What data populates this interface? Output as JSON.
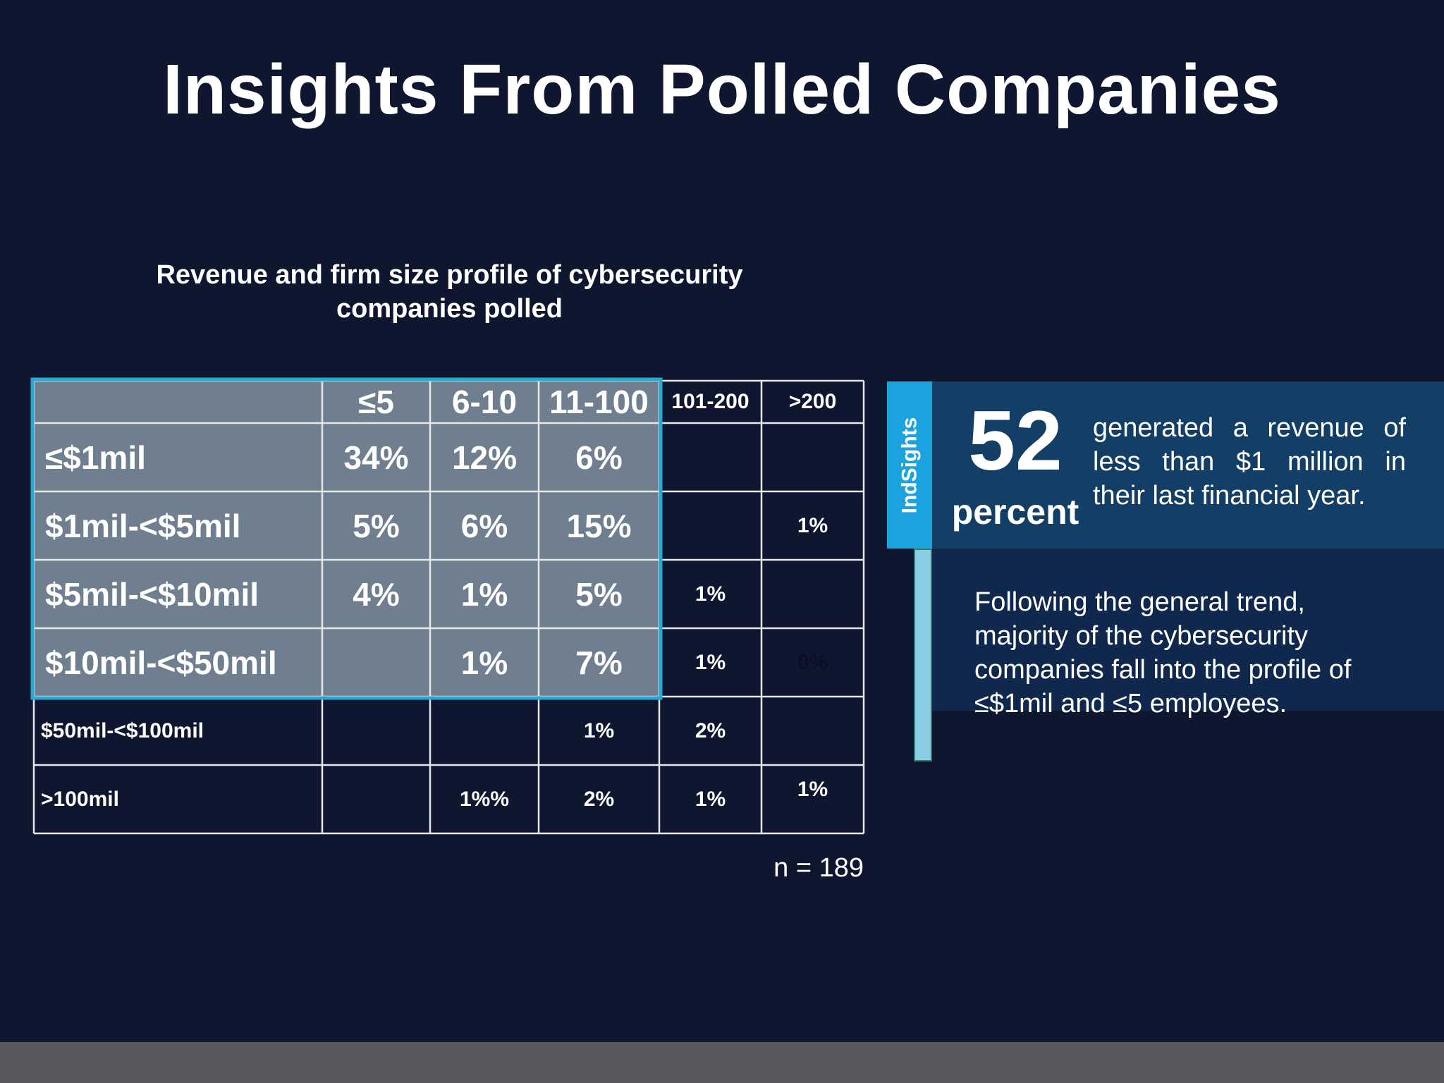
{
  "title": "Insights From Polled Companies",
  "colors": {
    "background": "#0e1630",
    "highlight_fill": "#6f7f90",
    "highlight_border": "#29a8d6",
    "callout_top": "#133e66",
    "callout_bottom": "#10284d",
    "tab": "#1ba3e0",
    "stem": "#8ccde6",
    "footer": "#58585d"
  },
  "chart_data": {
    "type": "table",
    "title": "Revenue and firm size profile of cybersecurity companies polled",
    "columns": [
      "≤5",
      "6-10",
      "11-100",
      "101-200",
      ">200"
    ],
    "rows": [
      {
        "label": "≤$1mil",
        "values": [
          "34%",
          "12%",
          "6%",
          "",
          ""
        ]
      },
      {
        "label": "$1mil-<$5mil",
        "values": [
          "5%",
          "6%",
          "15%",
          "",
          "1%"
        ]
      },
      {
        "label": "$5mil-<$10mil",
        "values": [
          "4%",
          "1%",
          "5%",
          "1%",
          ""
        ]
      },
      {
        "label": "$10mil-<$50mil",
        "values": [
          "",
          "1%",
          "7%",
          "1%",
          "0%"
        ]
      },
      {
        "label": "$50mil-<$100mil",
        "values": [
          "",
          "",
          "1%",
          "2%",
          ""
        ]
      },
      {
        "label": ">100mil",
        "values": [
          "",
          "1%%",
          "2%",
          "1%",
          "1%"
        ]
      }
    ],
    "highlight": {
      "rows": 4,
      "columns": 3
    },
    "sample_size": "n = 189"
  },
  "callout": {
    "tab_label": "IndSights",
    "stat_value": "52",
    "stat_unit": "percent",
    "stat_text": "generated a revenue of less than $1 million in their last financial year.",
    "note": "Following the general trend, majority of the cybersecurity companies fall into the profile of ≤$1mil and ≤5 employees."
  }
}
